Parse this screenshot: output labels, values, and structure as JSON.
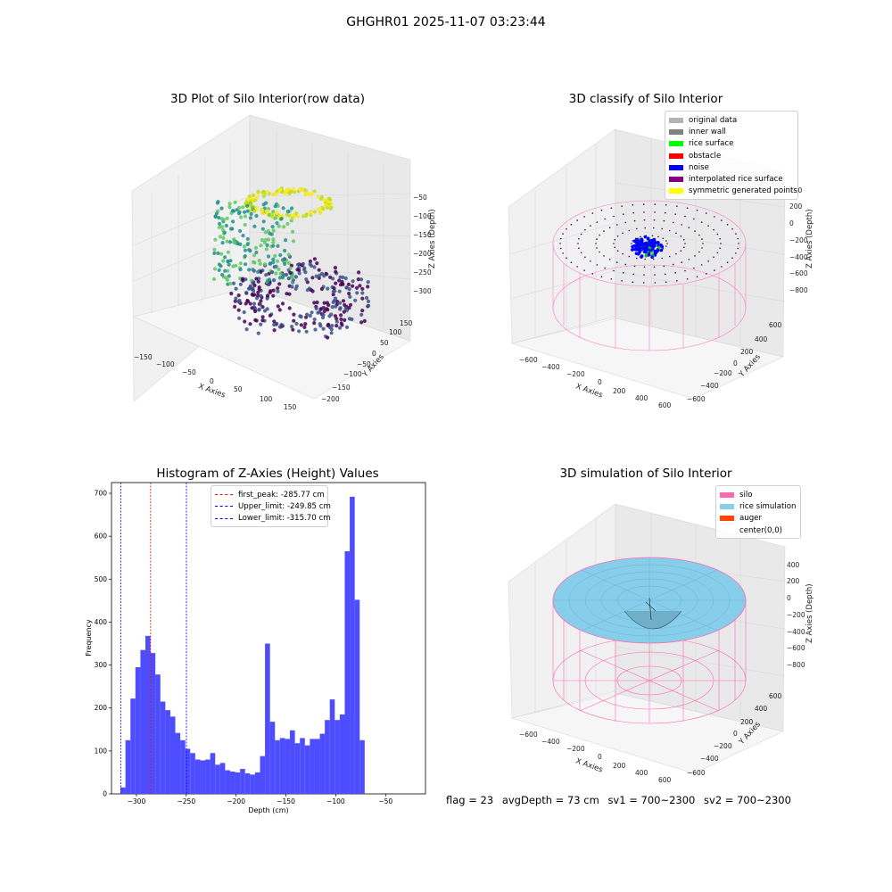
{
  "suptitle": "GHGHR01 2025-11-07 03:23:44",
  "panels": {
    "raw": {
      "title": "3D Plot of Silo Interior(row data)",
      "xlabel": "X Axies",
      "ylabel": "Y Axies",
      "zlabel": "Z Axies (Depth)",
      "xticks": [
        "−150",
        "−100",
        "−50",
        "0",
        "50",
        "100",
        "150"
      ],
      "yticks": [
        "150",
        "100",
        "50",
        "0",
        "−50",
        "−100",
        "−150",
        "−200"
      ],
      "zticks": [
        "−50",
        "−100",
        "−150",
        "−200",
        "−250",
        "−300"
      ]
    },
    "classify": {
      "title": "3D classify of Silo Interior",
      "xlabel": "X Axies",
      "ylabel": "Y Axies",
      "zlabel": "Z Axies (Depth)",
      "xticks": [
        "−600",
        "−400",
        "−200",
        "0",
        "200",
        "400",
        "600"
      ],
      "yticks": [
        "600",
        "400",
        "200",
        "0",
        "−200",
        "−400",
        "−600"
      ],
      "zticks": [
        "400",
        "200",
        "0",
        "−200",
        "−400",
        "−600",
        "−800"
      ],
      "legend": [
        {
          "label": "original data",
          "color": "#b3b3b3"
        },
        {
          "label": "inner wall",
          "color": "#808080"
        },
        {
          "label": "rice surface",
          "color": "#00ff00"
        },
        {
          "label": "obstacle",
          "color": "#ff0000"
        },
        {
          "label": "noise",
          "color": "#0000ff"
        },
        {
          "label": "interpolated rice surface",
          "color": "#800080"
        },
        {
          "label": "symmetric generated points",
          "color": "#ffff00"
        }
      ]
    },
    "simulation": {
      "title": "3D simulation of Silo Interior",
      "xlabel": "X Axies",
      "ylabel": "Y Axies",
      "zlabel": "Z Axies (Depth)",
      "xticks": [
        "−600",
        "−400",
        "−200",
        "0",
        "200",
        "400",
        "600"
      ],
      "yticks": [
        "600",
        "400",
        "200",
        "0",
        "−200",
        "−400",
        "−600"
      ],
      "zticks": [
        "400",
        "200",
        "0",
        "−200",
        "−400",
        "−600",
        "−800"
      ],
      "legend": [
        {
          "label": "silo",
          "color": "#ff69b4"
        },
        {
          "label": "rice simulation",
          "color": "#87ceeb"
        },
        {
          "label": "auger",
          "color": "#ff4500"
        },
        {
          "label": "center(0,0)",
          "color": ""
        }
      ]
    }
  },
  "chart_data": {
    "type": "bar",
    "title": "Histogram of Z-Axies (Height) Values",
    "xlabel": "Depth (cm)",
    "ylabel": "Frequency",
    "xlim": [
      -325,
      -10
    ],
    "ylim": [
      0,
      725
    ],
    "xticks": [
      -300,
      -250,
      -200,
      -150,
      -100,
      -50
    ],
    "yticks": [
      0,
      100,
      200,
      300,
      400,
      500,
      600,
      700
    ],
    "bar_color": "#4d4dff",
    "bin_start": -316,
    "bin_width": 5,
    "values": [
      15,
      125,
      222,
      295,
      335,
      368,
      328,
      278,
      215,
      195,
      180,
      142,
      125,
      105,
      95,
      80,
      78,
      80,
      95,
      68,
      72,
      55,
      52,
      50,
      58,
      48,
      45,
      50,
      88,
      350,
      168,
      125,
      130,
      128,
      148,
      118,
      130,
      113,
      128,
      128,
      140,
      172,
      220,
      172,
      185,
      565,
      692,
      452,
      125
    ],
    "vlines": [
      {
        "label": "first_peak: -285.77 cm",
        "x": -285.77,
        "color": "#ff0000"
      },
      {
        "label": "Upper_limit: -249.85 cm",
        "x": -249.85,
        "color": "#0000ff"
      },
      {
        "label": "Lower_limit: -315.70 cm",
        "x": -315.7,
        "color": "#0000ff"
      }
    ]
  },
  "footer": {
    "flag": "flag = 23",
    "avg": "avgDepth = 73 cm",
    "sv1": "sv1 = 700~2300",
    "sv2": "sv2 = 700~2300"
  }
}
